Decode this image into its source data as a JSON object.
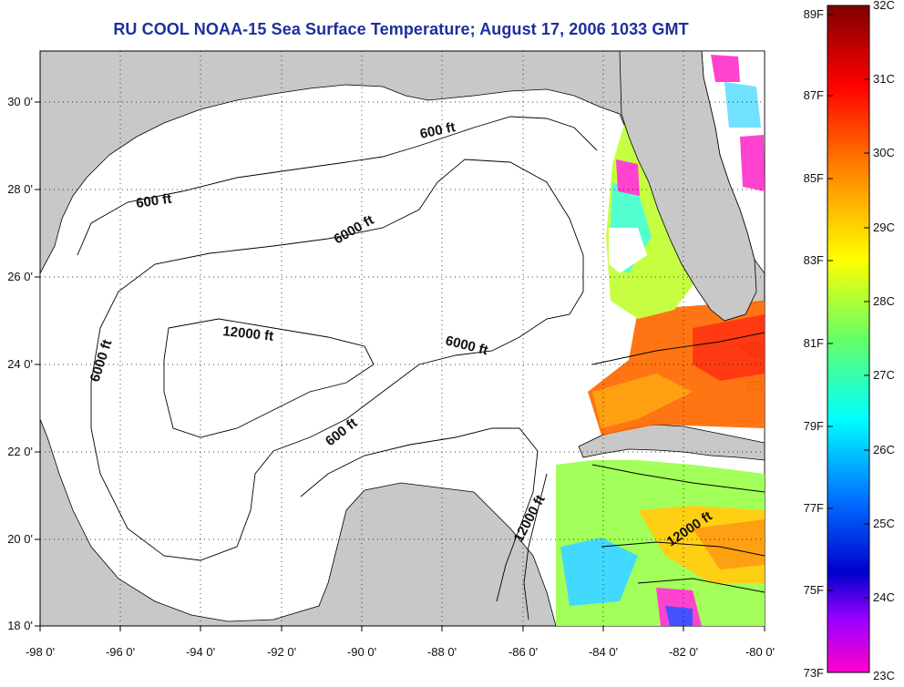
{
  "title": "RU COOL  NOAA-15  Sea Surface Temperature;  August 17, 2006 1033 GMT",
  "map": {
    "lon_ticks": [
      "-98 0'",
      "-96 0'",
      "-94 0'",
      "-92 0'",
      "-90 0'",
      "-88 0'",
      "-86 0'",
      "-84 0'",
      "-82 0'",
      "-80 0'"
    ],
    "lat_ticks": [
      "30 0'",
      "28 0'",
      "26 0'",
      "24 0'",
      "22 0'",
      "20 0'",
      "18 0'"
    ],
    "lon_range": [
      -98,
      -80
    ],
    "lat_range": [
      18,
      31.2
    ],
    "contour_labels": [
      "600 ft",
      "600 ft",
      "6000 ft",
      "12000 ft",
      "6000 ft",
      "6000 ft",
      "600 ft",
      "12000 ft",
      "12000 ft"
    ],
    "colors": {
      "land": "#c8c8c8",
      "ocean": "#ffffff",
      "grid": "#000000"
    }
  },
  "colorbar": {
    "fahrenheit": [
      "89F",
      "87F",
      "85F",
      "83F",
      "81F",
      "79F",
      "77F",
      "75F",
      "73F"
    ],
    "celsius": [
      "32C",
      "31C",
      "30C",
      "29C",
      "28C",
      "27C",
      "26C",
      "25C",
      "24C",
      "23C"
    ],
    "range_c": [
      23,
      32
    ]
  }
}
